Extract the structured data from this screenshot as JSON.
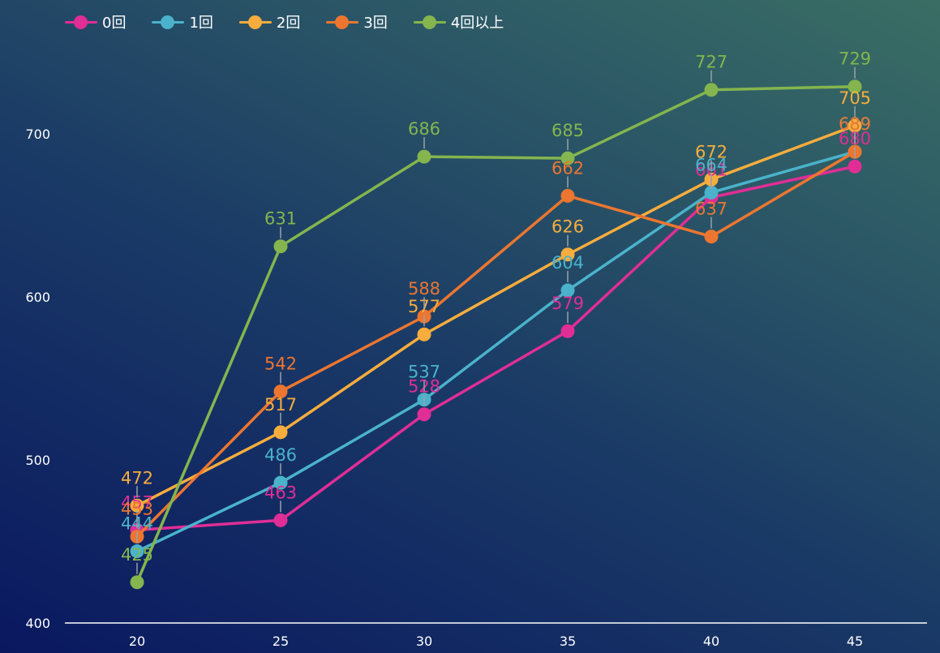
{
  "legend": [
    {
      "label": "0回",
      "color": "#e02e96"
    },
    {
      "label": "1回",
      "color": "#4ab3cb"
    },
    {
      "label": "2回",
      "color": "#f7ad3d"
    },
    {
      "label": "3回",
      "color": "#ec7630"
    },
    {
      "label": "4回以上",
      "color": "#84b54e"
    }
  ],
  "chart_data": {
    "type": "line",
    "x": [
      20,
      25,
      30,
      35,
      40,
      45
    ],
    "x_tick_labels": [
      "20",
      "25",
      "30",
      "35",
      "40",
      "45"
    ],
    "y_tick_labels": [
      "400",
      "500",
      "600",
      "700"
    ],
    "ylim": [
      400,
      700
    ],
    "grid": false,
    "legend_position": "top-left",
    "series": [
      {
        "name": "0回",
        "color": "#e02e96",
        "values": [
          457,
          463,
          528,
          579,
          661,
          680
        ]
      },
      {
        "name": "1回",
        "color": "#4ab3cb",
        "values": [
          444,
          486,
          537,
          604,
          664,
          689
        ]
      },
      {
        "name": "2回",
        "color": "#f7ad3d",
        "values": [
          472,
          517,
          577,
          626,
          672,
          705
        ]
      },
      {
        "name": "3回",
        "color": "#ec7630",
        "values": [
          453,
          542,
          588,
          662,
          637,
          689
        ]
      },
      {
        "name": "4回以上",
        "color": "#84b54e",
        "values": [
          425,
          631,
          686,
          685,
          727,
          729
        ]
      }
    ]
  }
}
